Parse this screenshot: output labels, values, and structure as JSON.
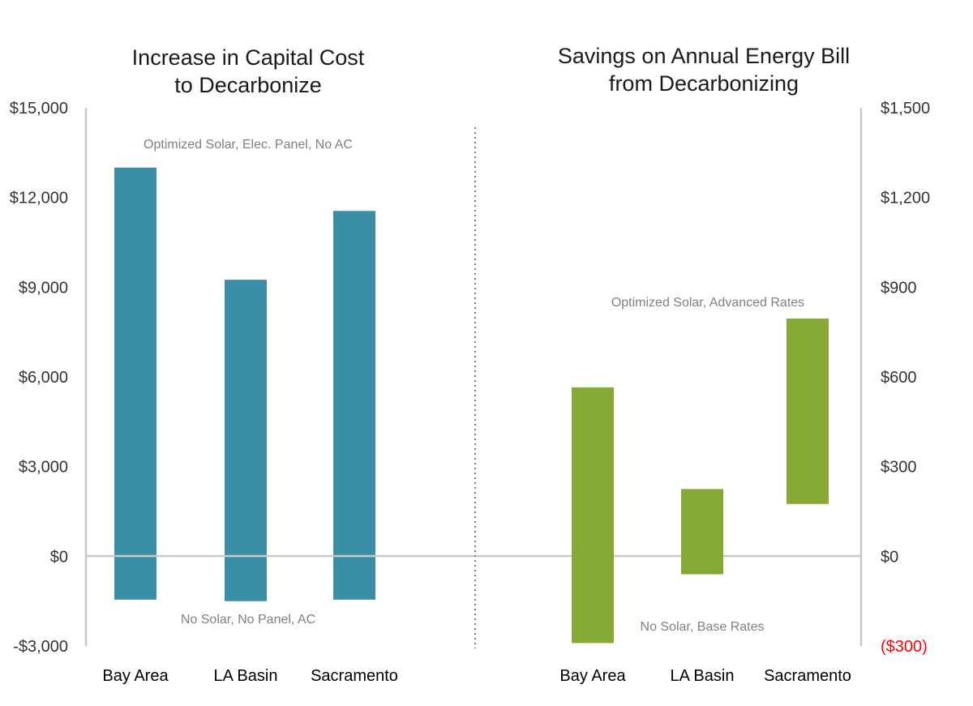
{
  "chart_data": [
    {
      "type": "bar",
      "subtype": "floating-range",
      "title": "Increase in Capital Cost to Decarbonize",
      "title_lines": [
        "Increase in Capital Cost",
        "to Decarbonize"
      ],
      "categories": [
        "Bay Area",
        "LA Basin",
        "Sacramento"
      ],
      "ranges": [
        [
          -1450,
          13000
        ],
        [
          -1500,
          9250
        ],
        [
          -1450,
          11550
        ]
      ],
      "ylim": [
        -3000,
        15000
      ],
      "y_ticks": [
        15000,
        12000,
        9000,
        6000,
        3000,
        0,
        -3000
      ],
      "y_tick_labels": [
        "$15,000",
        "$12,000",
        "$9,000",
        "$6,000",
        "$3,000",
        "$0",
        "-$3,000"
      ],
      "y_axis_position": "left",
      "annotations": {
        "top": "Optimized Solar, Elec. Panel, No AC",
        "bottom": "No Solar, No Panel, AC"
      },
      "color": "#3A8FA6",
      "grid": false
    },
    {
      "type": "bar",
      "subtype": "floating-range",
      "title": "Savings on Annual Energy Bill from Decarbonizing",
      "title_lines": [
        "Savings on Annual Energy Bill",
        "from Decarbonizing"
      ],
      "categories": [
        "Bay Area",
        "LA Basin",
        "Sacramento"
      ],
      "ranges": [
        [
          -290,
          565
        ],
        [
          -60,
          225
        ],
        [
          175,
          795
        ]
      ],
      "ylim": [
        -300,
        1500
      ],
      "y_ticks": [
        1500,
        1200,
        900,
        600,
        300,
        0,
        -300
      ],
      "y_tick_labels": [
        "$1,500",
        "$1,200",
        "$900",
        "$600",
        "$300",
        "$0",
        "($300)"
      ],
      "negative_tick_color": "#FF0000",
      "y_axis_position": "right",
      "annotations": {
        "top": "Optimized Solar, Advanced Rates",
        "bottom": "No Solar, Base Rates"
      },
      "color": "#84A934",
      "grid": false
    }
  ]
}
